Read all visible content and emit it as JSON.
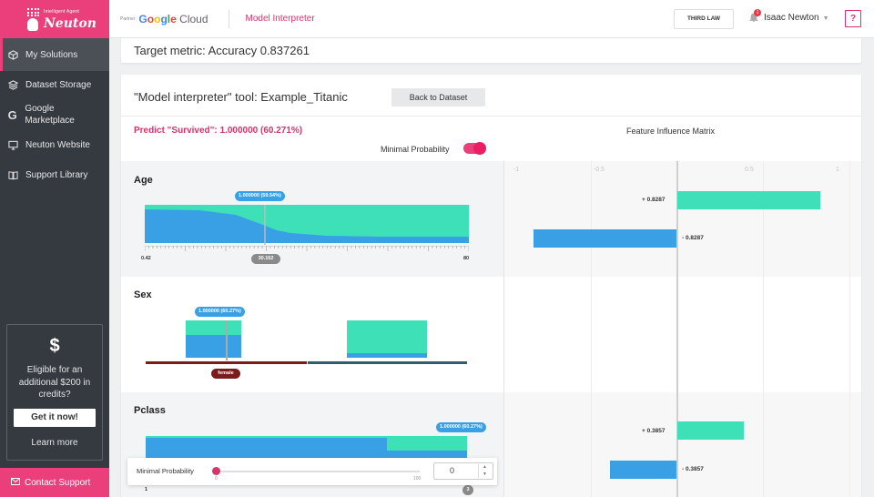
{
  "brand": {
    "subtitle": "Intelligent Agent",
    "name": "Neuton"
  },
  "sidebar": {
    "items": [
      {
        "label": "My Solutions",
        "icon": "cube-icon"
      },
      {
        "label": "Dataset Storage",
        "icon": "layers-icon"
      },
      {
        "label": "Google Marketplace",
        "icon": "google-icon"
      },
      {
        "label": "Neuton Website",
        "icon": "monitor-icon"
      },
      {
        "label": "Support Library",
        "icon": "book-icon"
      }
    ],
    "credits": {
      "symbol": "$",
      "text": "Eligible for an additional $200 in credits?",
      "cta": "Get it now!",
      "learn": "Learn more"
    },
    "contact": "Contact Support"
  },
  "topbar": {
    "partner": "Partner",
    "google_cloud": "Google Cloud",
    "breadcrumb": "Model Interpreter",
    "company_button": "THIRD LAW",
    "notifications": "1",
    "user": "Isaac Newton",
    "help": "?"
  },
  "target_metric": "Target metric: Accuracy 0.837261",
  "tool": {
    "title": "\"Model interpreter\" tool: Example_Titanic",
    "back_button": "Back to Dataset",
    "predict": "Predict \"Survived\": 1.000000 (60.271%)",
    "matrix_title": "Feature Influence Matrix",
    "minimal_probability": "Minimal Probability",
    "matrix_ticks": [
      "-1",
      "-0.5",
      "0.5",
      "1"
    ]
  },
  "features": [
    {
      "name": "Age",
      "tooltip": "1.000000 (59.54%)",
      "min": "0.42",
      "max": "80",
      "value": "30.162",
      "pos": "+ 0.8287",
      "neg": "- 0.8287",
      "pos_value": 0.8287,
      "neg_value": -0.8287
    },
    {
      "name": "Sex",
      "tooltip": "1.000000 (60.27%)",
      "value": "female"
    },
    {
      "name": "Pclass",
      "tooltip": "1.000000 (60.27%)",
      "min": "1",
      "value": "3",
      "pos": "+ 0.3857",
      "neg": "- 0.3857",
      "pos_value": 0.3857,
      "neg_value": -0.3857
    }
  ],
  "floating_slider": {
    "label": "Minimal Probability",
    "min": "0",
    "max": "100",
    "value": "0",
    "up": "▲",
    "down": "▼"
  },
  "colors": {
    "accent": "#ea3f7a",
    "teal": "#3ee0b8",
    "blue": "#3aa0e6",
    "maroon": "#7a1c1c"
  }
}
